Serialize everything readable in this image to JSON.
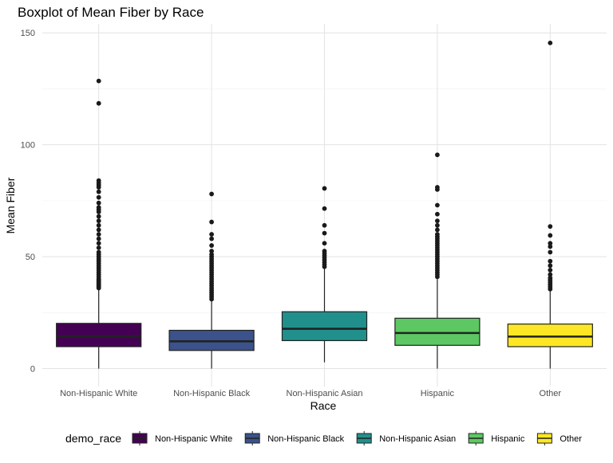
{
  "chart_data": {
    "type": "boxplot",
    "title": "Boxplot of Mean Fiber by Race",
    "xlabel": "Race",
    "ylabel": "Mean Fiber",
    "ylim": [
      -8,
      154
    ],
    "yticks": [
      0,
      50,
      100,
      150
    ],
    "grid": true,
    "legend": {
      "title": "demo_race",
      "position": "bottom"
    },
    "categories": [
      "Non-Hispanic White",
      "Non-Hispanic Black",
      "Non-Hispanic Asian",
      "Hispanic",
      "Other"
    ],
    "colors": [
      "#440154",
      "#3b528b",
      "#21908c",
      "#5dc863",
      "#fde725"
    ],
    "boxes": [
      {
        "category": "Non-Hispanic White",
        "min": 0,
        "q1": 9.8,
        "median": 14.4,
        "q3": 20.2,
        "max": 35.5,
        "outliers": [
          36,
          36.5,
          37,
          37.5,
          38,
          38.5,
          39,
          39.5,
          40,
          41,
          42,
          43,
          44,
          45,
          46,
          47,
          48,
          49,
          50,
          51,
          52,
          54,
          56,
          58,
          60,
          62,
          64,
          66,
          68,
          70,
          71,
          72,
          74,
          76.5,
          79,
          81,
          82,
          83,
          84,
          118.5,
          128.5
        ]
      },
      {
        "category": "Non-Hispanic Black",
        "min": 0,
        "q1": 8.1,
        "median": 12.2,
        "q3": 17.1,
        "max": 30.5,
        "outliers": [
          31,
          32,
          33,
          34,
          35,
          36,
          37,
          38,
          39,
          40,
          41,
          42,
          43,
          44,
          45,
          46,
          47,
          48,
          49,
          50,
          51,
          52.5,
          55,
          58,
          60,
          65.5,
          78
        ]
      },
      {
        "category": "Non-Hispanic Asian",
        "min": 2.8,
        "q1": 12.5,
        "median": 17.8,
        "q3": 25.4,
        "max": 44.8,
        "outliers": [
          45.5,
          46.5,
          47.5,
          48.5,
          49.5,
          50.5,
          51.5,
          52.5,
          56,
          60.5,
          64,
          71.5,
          80.5
        ]
      },
      {
        "category": "Hispanic",
        "min": 0,
        "q1": 10.4,
        "median": 15.9,
        "q3": 22.5,
        "max": 40,
        "outliers": [
          41,
          42,
          43,
          44,
          45,
          46,
          47,
          48,
          49,
          50,
          51,
          52,
          53,
          54,
          55,
          56,
          57,
          58,
          59,
          60,
          62,
          64,
          66,
          69,
          73,
          80,
          81,
          95.5
        ]
      },
      {
        "category": "Other",
        "min": 0,
        "q1": 9.8,
        "median": 14.3,
        "q3": 19.9,
        "max": 35,
        "outliers": [
          35.5,
          36.5,
          37.5,
          38.5,
          39.5,
          40.5,
          42,
          44,
          46,
          48,
          52,
          54.5,
          56,
          59.5,
          63.5,
          145.5
        ]
      }
    ]
  }
}
